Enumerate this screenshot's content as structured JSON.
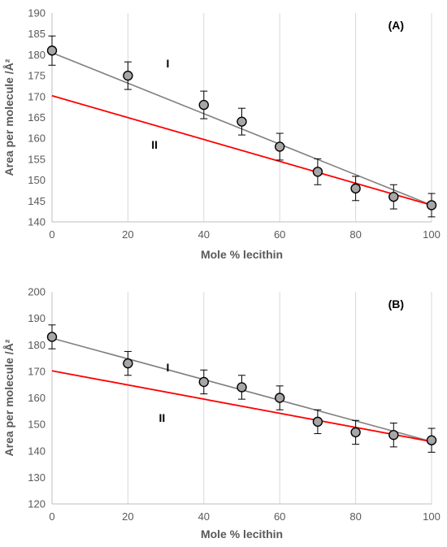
{
  "chart_data": [
    {
      "type": "scatter",
      "panel_label": "(A)",
      "xlabel": "Mole % lecithin",
      "ylabel": "Area per molecule /Å²",
      "xlim": [
        0,
        100
      ],
      "ylim": [
        140,
        190
      ],
      "xticks": [
        0,
        20,
        40,
        60,
        80,
        100
      ],
      "yticks": [
        140,
        145,
        150,
        155,
        160,
        165,
        170,
        175,
        180,
        185,
        190
      ],
      "grid": "vertical",
      "series": [
        {
          "x": [
            0,
            20,
            40,
            50,
            60,
            70,
            80,
            90,
            100
          ],
          "y": [
            181,
            175,
            168,
            164,
            158,
            152,
            148,
            146,
            144
          ],
          "yerr": [
            3.5,
            3.3,
            3.3,
            3.2,
            3.2,
            3.1,
            2.9,
            2.9,
            2.8
          ],
          "color": "#a6a6a6"
        }
      ],
      "lines": [
        {
          "label": "I",
          "x": [
            0,
            100
          ],
          "y": [
            180.5,
            144
          ],
          "color": "#7f7f7f"
        },
        {
          "label": "II",
          "x": [
            0,
            100
          ],
          "y": [
            170.2,
            144
          ],
          "color": "#ff0000"
        }
      ],
      "line_labels": [
        {
          "text": "I",
          "x": 30.5,
          "y": 177
        },
        {
          "text": "II",
          "x": 27,
          "y": 157.5
        }
      ]
    },
    {
      "type": "scatter",
      "panel_label": "(B)",
      "xlabel": "Mole % lecithin",
      "ylabel": "Area per molecule /Å²",
      "xlim": [
        0,
        100
      ],
      "ylim": [
        120,
        200
      ],
      "xticks": [
        0,
        20,
        40,
        60,
        80,
        100
      ],
      "yticks": [
        120,
        130,
        140,
        150,
        160,
        170,
        180,
        190,
        200
      ],
      "grid": "vertical",
      "series": [
        {
          "x": [
            0,
            20,
            40,
            50,
            60,
            70,
            80,
            90,
            100
          ],
          "y": [
            183,
            173,
            166,
            164,
            160,
            151,
            147,
            146,
            144
          ],
          "yerr": [
            4.5,
            4.5,
            4.5,
            4.5,
            4.5,
            4.5,
            4.5,
            4.5,
            4.5
          ],
          "color": "#a6a6a6"
        }
      ],
      "lines": [
        {
          "label": "I",
          "x": [
            0,
            100
          ],
          "y": [
            182.5,
            143.5
          ],
          "color": "#7f7f7f"
        },
        {
          "label": "II",
          "x": [
            0,
            100
          ],
          "y": [
            170.2,
            143.5
          ],
          "color": "#ff0000"
        }
      ],
      "line_labels": [
        {
          "text": "I",
          "x": 30.5,
          "y": 170
        },
        {
          "text": "II",
          "x": 29,
          "y": 151
        }
      ]
    }
  ]
}
